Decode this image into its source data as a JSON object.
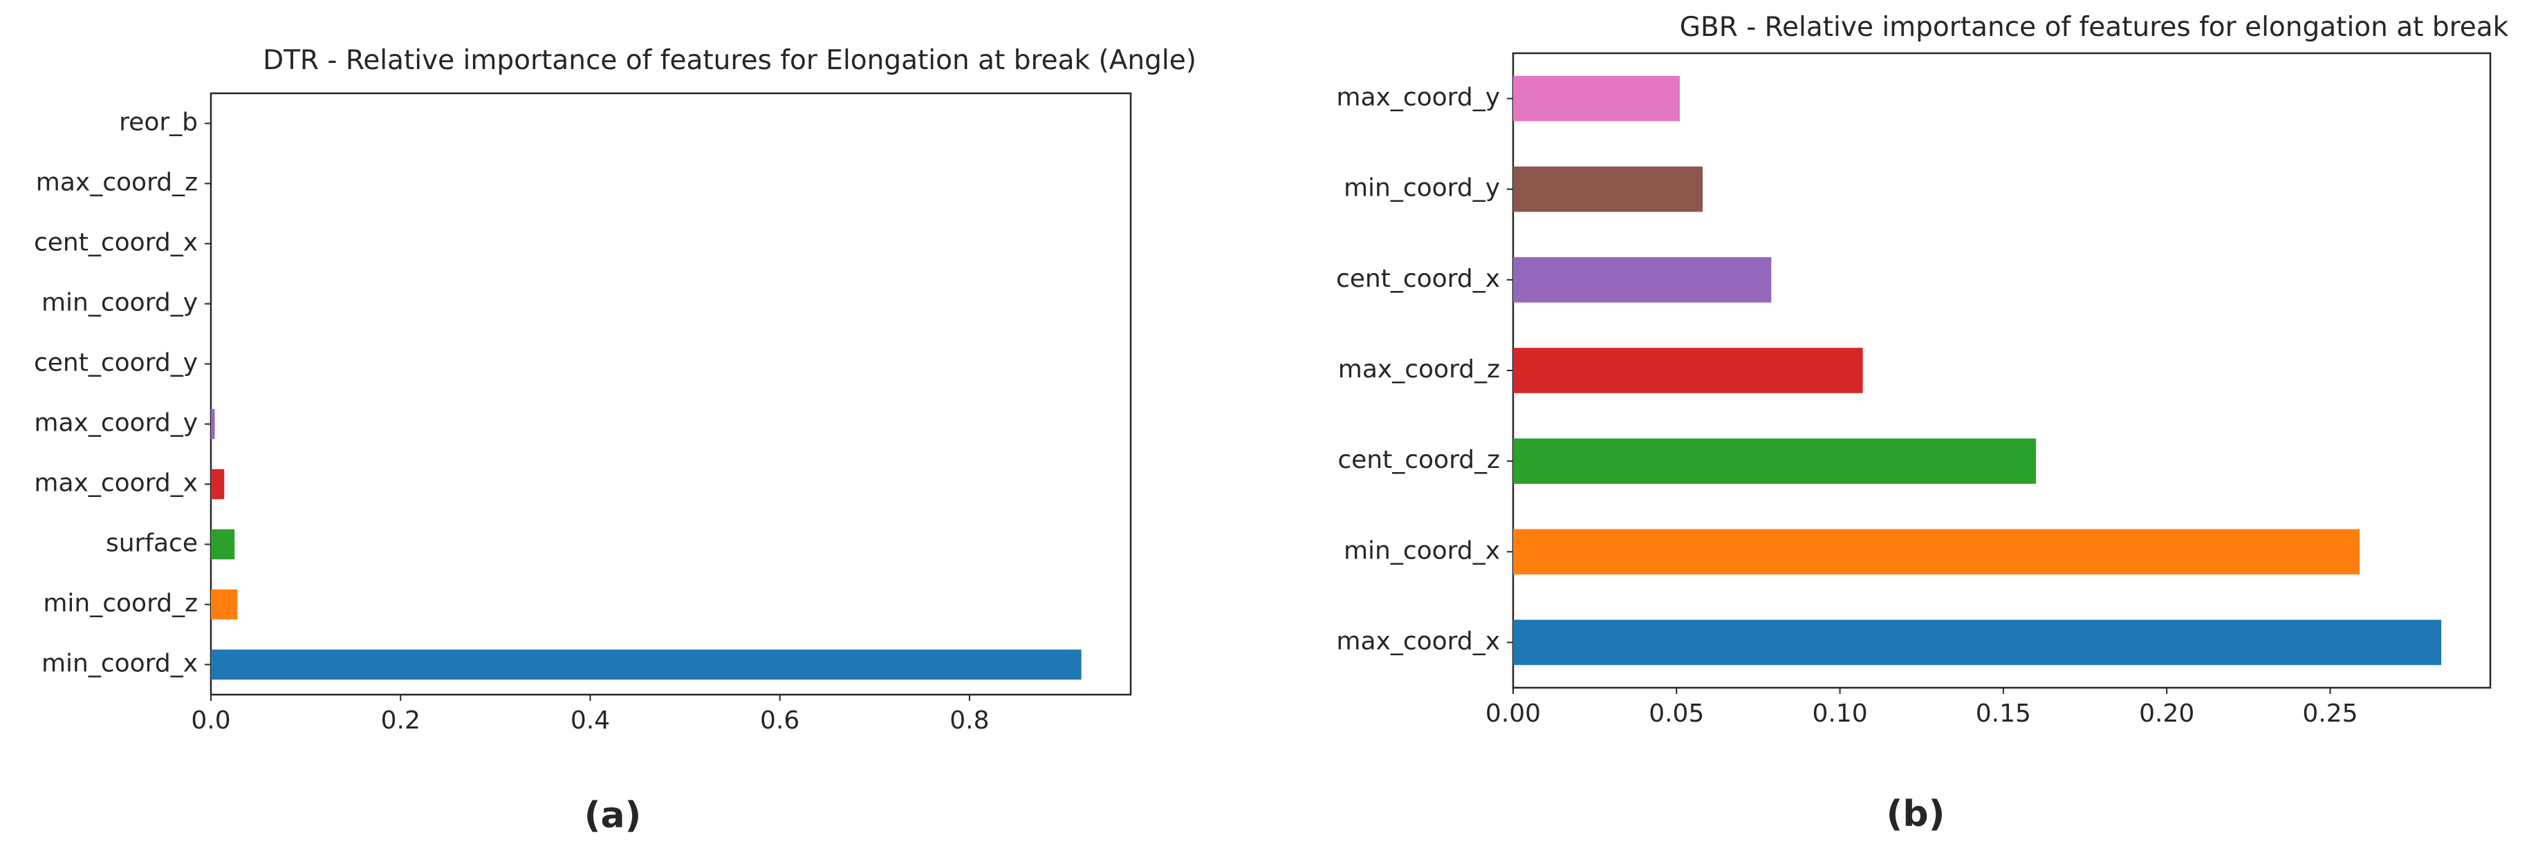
{
  "chart_data": [
    {
      "type": "bar",
      "orientation": "horizontal",
      "title": "DTR - Relative importance of features for Elongation at break (Angle)",
      "caption": "(a)",
      "categories": [
        "min_coord_x",
        "min_coord_z",
        "surface",
        "max_coord_x",
        "max_coord_y",
        "cent_coord_y",
        "min_coord_y",
        "cent_coord_x",
        "max_coord_z",
        "reor_b"
      ],
      "values": [
        0.918,
        0.028,
        0.025,
        0.014,
        0.004,
        0.0,
        0.0,
        0.0,
        0.0,
        0.0
      ],
      "colors": [
        "#1f77b4",
        "#ff7f0e",
        "#2ca02c",
        "#d62728",
        "#9467bd",
        "#8c564b",
        "#e377c2",
        "#7f7f7f",
        "#bcbd22",
        "#17becf"
      ],
      "xlim": [
        0,
        0.97
      ],
      "xticks": [
        0.0,
        0.2,
        0.4,
        0.6,
        0.8
      ],
      "xtick_labels": [
        "0.0",
        "0.2",
        "0.4",
        "0.6",
        "0.8"
      ],
      "xlabel": "",
      "ylabel": "",
      "grid": false
    },
    {
      "type": "bar",
      "orientation": "horizontal",
      "title": "GBR - Relative importance of features for elongation at break",
      "caption": "(b)",
      "categories": [
        "max_coord_x",
        "min_coord_x",
        "cent_coord_z",
        "max_coord_z",
        "cent_coord_x",
        "min_coord_y",
        "max_coord_y"
      ],
      "values": [
        0.284,
        0.259,
        0.16,
        0.107,
        0.079,
        0.058,
        0.051
      ],
      "colors": [
        "#1f77b4",
        "#ff7f0e",
        "#2ca02c",
        "#d62728",
        "#9467bd",
        "#8c564b",
        "#e377c2"
      ],
      "xlim": [
        0,
        0.299
      ],
      "xticks": [
        0.0,
        0.05,
        0.1,
        0.15,
        0.2,
        0.25
      ],
      "xtick_labels": [
        "0.00",
        "0.05",
        "0.10",
        "0.15",
        "0.20",
        "0.25"
      ],
      "xlabel": "",
      "ylabel": "",
      "grid": false
    }
  ]
}
